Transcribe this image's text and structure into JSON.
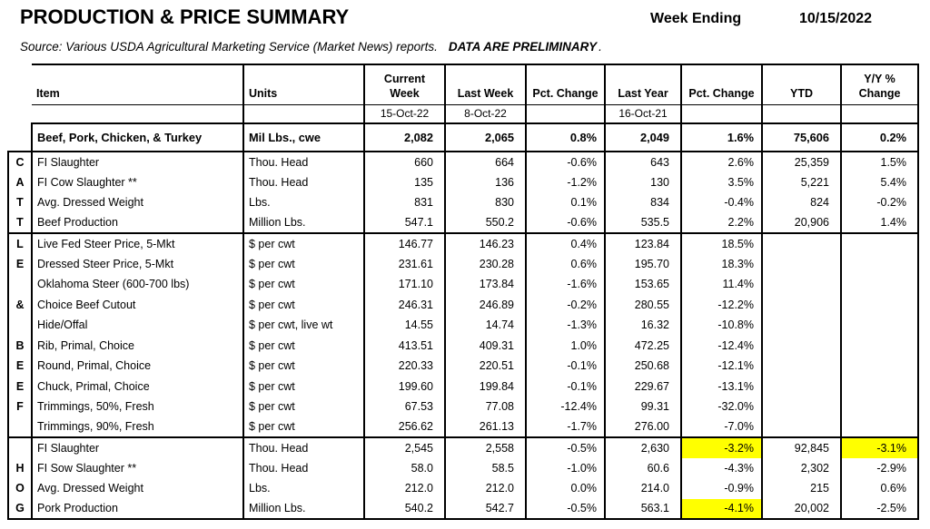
{
  "page": {
    "title": "PRODUCTION & PRICE SUMMARY",
    "week_ending_label": "Week Ending",
    "week_ending_value": "10/15/2022",
    "source_text": "Source:  Various USDA Agricultural Marketing Service (Market News) reports.",
    "source_emphasis": "DATA ARE PRELIMINARY",
    "source_period": "."
  },
  "table": {
    "headers": [
      "Item",
      "Units",
      "Current\nWeek",
      "Last Week",
      "Pct. Change",
      "Last Year",
      "Pct. Change",
      "YTD",
      "Y/Y %\nChange"
    ],
    "dates": [
      "",
      "",
      "15-Oct-22",
      "8-Oct-22",
      "",
      "16-Oct-21",
      "",
      "",
      ""
    ],
    "summary": {
      "item": "Beef, Pork, Chicken, & Turkey",
      "units": "Mil Lbs., cwe",
      "values": [
        "2,082",
        "2,065",
        "0.8%",
        "2,049",
        "1.6%",
        "75,606",
        "0.2%"
      ]
    },
    "highlight_color": "#FFFF00",
    "sections": [
      {
        "name": "CATTLE & BEEF",
        "rows": [
          {
            "letter": "C",
            "item": "FI Slaughter",
            "units": "Thou. Head",
            "values": [
              "660",
              "664",
              "-0.6%",
              "643",
              "2.6%",
              "25,359",
              "1.5%"
            ]
          },
          {
            "letter": "A",
            "item": "FI Cow Slaughter **",
            "units": "Thou. Head",
            "values": [
              "135",
              "136",
              "-1.2%",
              "130",
              "3.5%",
              "5,221",
              "5.4%"
            ]
          },
          {
            "letter": "T",
            "item": "Avg. Dressed Weight",
            "units": "Lbs.",
            "values": [
              "831",
              "830",
              "0.1%",
              "834",
              "-0.4%",
              "824",
              "-0.2%"
            ]
          },
          {
            "letter": "T",
            "item": "Beef Production",
            "units": "Million Lbs.",
            "values": [
              "547.1",
              "550.2",
              "-0.6%",
              "535.5",
              "2.2%",
              "20,906",
              "1.4%"
            ],
            "divider_below": true
          },
          {
            "letter": "L",
            "item": "Live Fed Steer Price, 5-Mkt",
            "units": "$ per cwt",
            "values": [
              "146.77",
              "146.23",
              "0.4%",
              "123.84",
              "18.5%",
              "",
              ""
            ]
          },
          {
            "letter": "E",
            "item": "Dressed Steer Price, 5-Mkt",
            "units": "$ per cwt",
            "values": [
              "231.61",
              "230.28",
              "0.6%",
              "195.70",
              "18.3%",
              "",
              ""
            ]
          },
          {
            "letter": "",
            "item": "Oklahoma Steer (600-700 lbs)",
            "units": "$ per cwt",
            "values": [
              "171.10",
              "173.84",
              "-1.6%",
              "153.65",
              "11.4%",
              "",
              ""
            ]
          },
          {
            "letter": "&",
            "item": "Choice Beef Cutout",
            "units": "$ per cwt",
            "values": [
              "246.31",
              "246.89",
              "-0.2%",
              "280.55",
              "-12.2%",
              "",
              ""
            ]
          },
          {
            "letter": "",
            "item": "Hide/Offal",
            "units": "$ per cwt, live wt",
            "values": [
              "14.55",
              "14.74",
              "-1.3%",
              "16.32",
              "-10.8%",
              "",
              ""
            ]
          },
          {
            "letter": "B",
            "item": "Rib, Primal, Choice",
            "units": "$ per cwt",
            "values": [
              "413.51",
              "409.31",
              "1.0%",
              "472.25",
              "-12.4%",
              "",
              ""
            ]
          },
          {
            "letter": "E",
            "item": "Round, Primal, Choice",
            "units": "$ per cwt",
            "values": [
              "220.33",
              "220.51",
              "-0.1%",
              "250.68",
              "-12.1%",
              "",
              ""
            ]
          },
          {
            "letter": "E",
            "item": "Chuck, Primal, Choice",
            "units": "$ per cwt",
            "values": [
              "199.60",
              "199.84",
              "-0.1%",
              "229.67",
              "-13.1%",
              "",
              ""
            ]
          },
          {
            "letter": "F",
            "item": "Trimmings, 50%, Fresh",
            "units": "$ per cwt",
            "values": [
              "67.53",
              "77.08",
              "-12.4%",
              "99.31",
              "-32.0%",
              "",
              ""
            ]
          },
          {
            "letter": "",
            "item": "Trimmings, 90%, Fresh",
            "units": "$ per cwt",
            "values": [
              "256.62",
              "261.13",
              "-1.7%",
              "276.00",
              "-7.0%",
              "",
              ""
            ]
          }
        ]
      },
      {
        "name": "HOG",
        "rows": [
          {
            "letter": "",
            "item": "FI Slaughter",
            "units": "Thou. Head",
            "values": [
              "2,545",
              "2,558",
              "-0.5%",
              "2,630",
              "-3.2%",
              "92,845",
              "-3.1%"
            ],
            "highlights": [
              4,
              6
            ]
          },
          {
            "letter": "H",
            "item": "FI Sow Slaughter **",
            "units": "Thou. Head",
            "values": [
              "58.0",
              "58.5",
              "-1.0%",
              "60.6",
              "-4.3%",
              "2,302",
              "-2.9%"
            ]
          },
          {
            "letter": "O",
            "item": "Avg. Dressed Weight",
            "units": "Lbs.",
            "values": [
              "212.0",
              "212.0",
              "0.0%",
              "214.0",
              "-0.9%",
              "215",
              "0.6%"
            ]
          },
          {
            "letter": "G",
            "item": "Pork Production",
            "units": "Million Lbs.",
            "values": [
              "540.2",
              "542.7",
              "-0.5%",
              "563.1",
              "-4.1%",
              "20,002",
              "-2.5%"
            ],
            "highlights": [
              4
            ]
          }
        ]
      }
    ]
  }
}
